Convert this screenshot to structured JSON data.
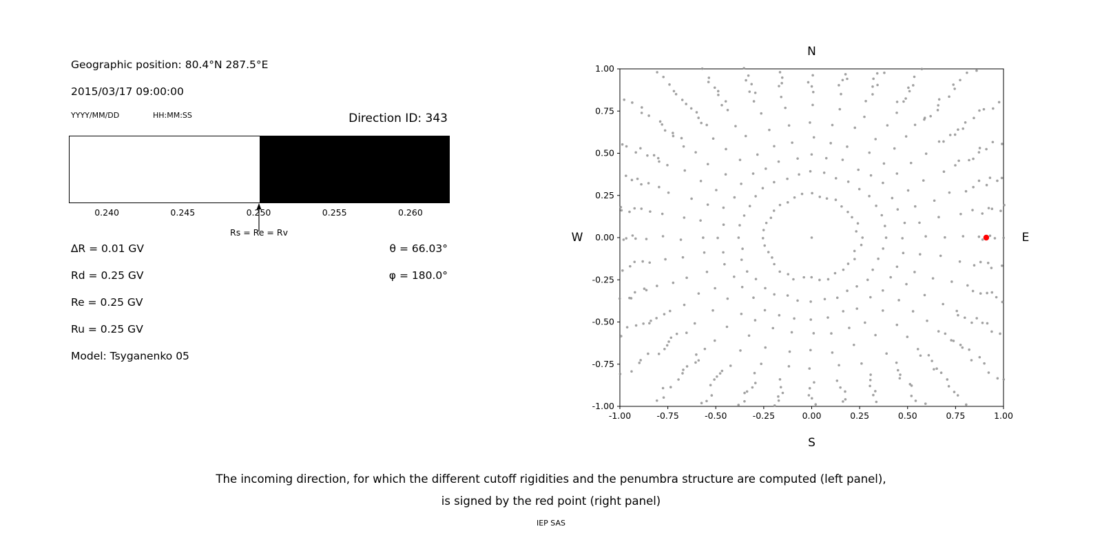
{
  "left_panel": {
    "geo_position": "Geographic position: 80.4°N 287.5°E",
    "datetime": "2015/03/17 09:00:00",
    "date_format": "YYYY/MM/DD",
    "time_format": "HH:MM:SS",
    "direction_id": "Direction ID: 343",
    "penumbra": {
      "axis_min": 0.2375,
      "axis_max": 0.2625,
      "boundary": 0.25,
      "tick_values": [
        0.24,
        0.245,
        0.25,
        0.255,
        0.26
      ],
      "ticks": [
        "0.240",
        "0.245",
        "0.250",
        "0.255",
        "0.260"
      ],
      "arrow_label": "Rs = Re = Rv",
      "allowed_color": "#ffffff",
      "forbidden_color": "#000000"
    },
    "params": [
      "∆R = 0.01 GV",
      "Rd = 0.25 GV",
      "Re = 0.25 GV",
      "Ru = 0.25 GV",
      "Model: Tsyganenko 05"
    ],
    "angles": [
      "θ = 66.03°",
      "φ = 180.0°"
    ]
  },
  "chart_data": {
    "type": "scatter",
    "title": "",
    "compass_labels": {
      "top": "N",
      "bottom": "S",
      "left": "W",
      "right": "E"
    },
    "xlim": [
      -1.0,
      1.0
    ],
    "ylim": [
      -1.0,
      1.0
    ],
    "xticks": [
      "-1.00",
      "-0.75",
      "-0.50",
      "-0.25",
      "0.00",
      "0.25",
      "0.50",
      "0.75",
      "1.00"
    ],
    "yticks": [
      "1.00",
      "0.75",
      "0.50",
      "0.25",
      "0.00",
      "-0.25",
      "-0.50",
      "-0.75",
      "-1.00"
    ],
    "grid": false,
    "dots": {
      "color": "#909090",
      "opacity": 0.85,
      "radius_px": 1.8,
      "spoke_count": 36,
      "spoke_step_deg": 10,
      "spoke_radii": [
        0.25,
        0.38,
        0.48,
        0.58,
        0.68,
        0.78,
        0.86,
        0.905,
        0.935,
        0.965,
        0.995,
        1.025,
        1.06,
        1.1,
        1.14,
        1.18,
        1.22,
        1.27,
        1.32,
        1.37
      ],
      "center_dot": [
        0,
        0
      ],
      "clip_limit": 1.005,
      "angle_jitter_deg": 1.2,
      "radius_jitter": 0.015
    },
    "red_point": {
      "x": 0.91,
      "y": 0.0,
      "color": "#ff0000",
      "radius_px": 4.2,
      "label": "incoming direction"
    }
  },
  "caption": {
    "line1": "The incoming direction, for which the different cutoff rigidities and the penumbra structure are computed (left panel),",
    "line2": "is signed by the red point (right panel)",
    "credit": "IEP SAS"
  }
}
